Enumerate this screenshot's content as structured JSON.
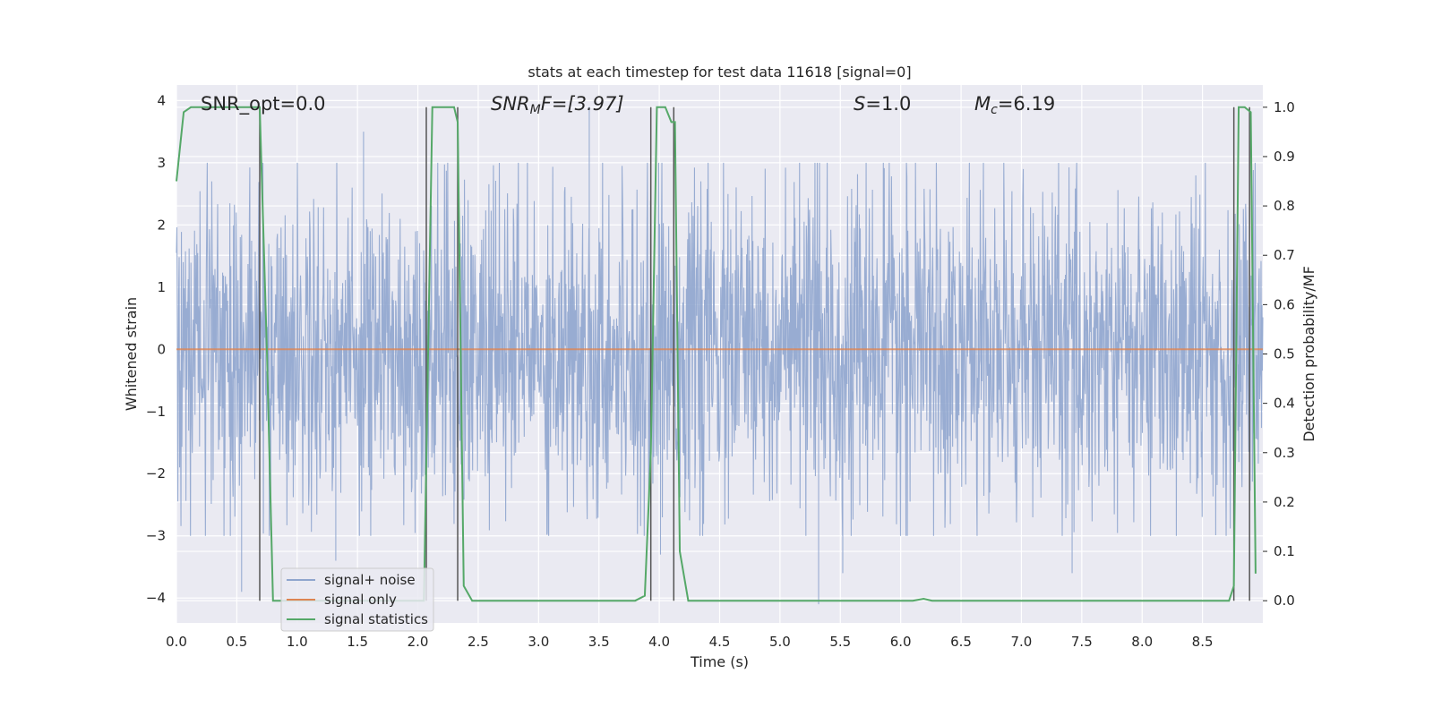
{
  "chart_data": {
    "type": "line",
    "title": "stats at each timestep for test data 11618 [signal=0]",
    "xlabel": "Time (s)",
    "ylabel": "Whitened strain",
    "y2label": "Detection probability/MF",
    "xlim": [
      0,
      9.0
    ],
    "ylim": [
      -4.4,
      4.25
    ],
    "y2lim": [
      -0.045,
      1.045
    ],
    "x_ticks": [
      "0.0",
      "0.5",
      "1.0",
      "1.5",
      "2.0",
      "2.5",
      "3.0",
      "3.5",
      "4.0",
      "4.5",
      "5.0",
      "5.5",
      "6.0",
      "6.5",
      "7.0",
      "7.5",
      "8.0",
      "8.5"
    ],
    "y_ticks": [
      "−4",
      "−3",
      "−2",
      "−1",
      "0",
      "1",
      "2",
      "3",
      "4"
    ],
    "y2_ticks": [
      "0.0",
      "0.1",
      "0.2",
      "0.3",
      "0.4",
      "0.5",
      "0.6",
      "0.7",
      "0.8",
      "0.9",
      "1.0"
    ],
    "grid": true,
    "legend": "lower-left",
    "annotations": {
      "snr_opt": "SNR_opt=0.0",
      "snr_mf_base": "SNR",
      "snr_mf_sub": "M",
      "snr_mf_rest": "F=[3.97]",
      "s_base": "S",
      "s_rest": "=1.0",
      "mc_base": "M",
      "mc_sub": "c",
      "mc_rest": "=6.19"
    },
    "series": [
      {
        "name": "signal+ noise",
        "color": "#8fa5ce",
        "description": "whitened noise, approximately Gaussian, range about -4 to 4",
        "x_range": [
          0,
          9.0
        ],
        "amplitude": 1.3
      },
      {
        "name": "signal only",
        "color": "#dd8452",
        "x": [
          0,
          9.0
        ],
        "y": [
          0,
          0
        ]
      },
      {
        "name": "signal statistics",
        "color": "#55a868",
        "axis": "right",
        "x": [
          0.0,
          0.06,
          0.12,
          0.2,
          0.4,
          0.6,
          0.69,
          0.75,
          0.8,
          0.95,
          1.1,
          1.4,
          1.7,
          1.95,
          2.05,
          2.12,
          2.2,
          2.3,
          2.33,
          2.38,
          2.45,
          2.6,
          3.0,
          3.3,
          3.5,
          3.8,
          3.88,
          3.93,
          3.98,
          4.05,
          4.1,
          4.13,
          4.17,
          4.24,
          4.4,
          5.0,
          5.6,
          6.1,
          6.19,
          6.26,
          6.5,
          7.0,
          7.5,
          8.0,
          8.5,
          8.72,
          8.76,
          8.8,
          8.85,
          8.9,
          8.94
        ],
        "y": [
          0.85,
          0.99,
          1.0,
          1.0,
          1.0,
          1.0,
          1.0,
          0.5,
          0.0,
          0.0,
          0.0,
          0.0,
          0.0,
          0.0,
          0.0,
          1.0,
          1.0,
          1.0,
          0.97,
          0.03,
          0.0,
          0.0,
          0.0,
          0.0,
          0.0,
          0.0,
          0.01,
          0.3,
          1.0,
          1.0,
          0.97,
          0.97,
          0.1,
          0.0,
          0.0,
          0.0,
          0.0,
          0.0,
          0.004,
          0.0,
          0.0,
          0.0,
          0.0,
          0.0,
          0.0,
          0.0,
          0.03,
          1.0,
          1.0,
          0.99,
          0.055
        ]
      }
    ],
    "vertical_markers_x": [
      0.69,
      2.07,
      2.33,
      3.93,
      4.12,
      8.76,
      8.89
    ],
    "noise_peaks": [
      {
        "x": 0.54,
        "y": -3.9
      },
      {
        "x": 1.32,
        "y": -3.4
      },
      {
        "x": 3.42,
        "y": 3.9
      },
      {
        "x": 5.32,
        "y": -4.1
      },
      {
        "x": 5.52,
        "y": -3.6
      },
      {
        "x": 7.42,
        "y": -3.6
      },
      {
        "x": 4.01,
        "y": -3.3
      },
      {
        "x": 1.55,
        "y": 3.5
      }
    ]
  }
}
